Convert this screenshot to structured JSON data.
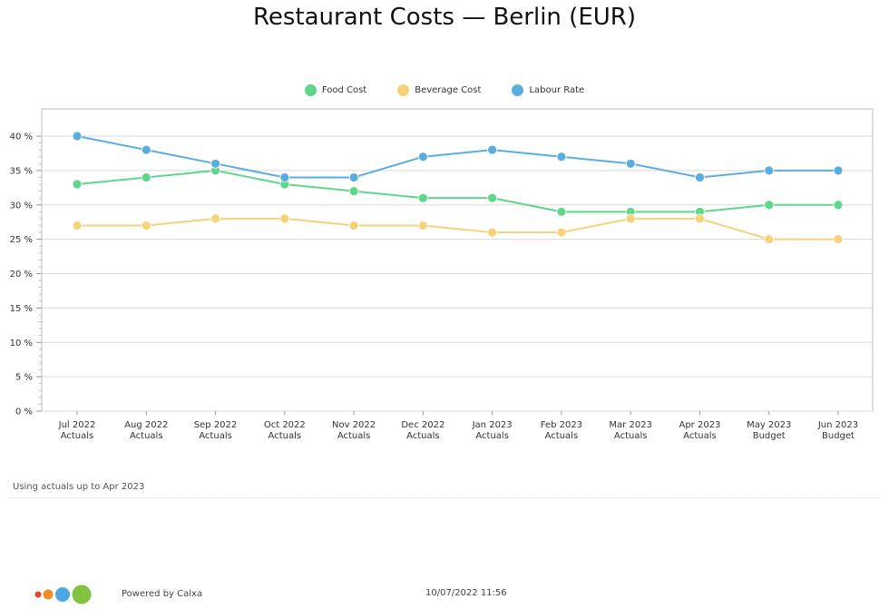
{
  "chart_data": {
    "type": "line",
    "title": "Restaurant Costs — Berlin (EUR)",
    "categories": [
      [
        "Jul 2022",
        "Actuals"
      ],
      [
        "Aug 2022",
        "Actuals"
      ],
      [
        "Sep 2022",
        "Actuals"
      ],
      [
        "Oct 2022",
        "Actuals"
      ],
      [
        "Nov 2022",
        "Actuals"
      ],
      [
        "Dec 2022",
        "Actuals"
      ],
      [
        "Jan 2023",
        "Actuals"
      ],
      [
        "Feb 2023",
        "Actuals"
      ],
      [
        "Mar 2023",
        "Actuals"
      ],
      [
        "Apr 2023",
        "Actuals"
      ],
      [
        "May 2023",
        "Budget"
      ],
      [
        "Jun 2023",
        "Budget"
      ]
    ],
    "series": [
      {
        "name": "Food Cost",
        "color": "#5ed78a",
        "values": [
          33,
          34,
          35,
          33,
          32,
          31,
          31,
          29,
          29,
          29,
          30,
          30
        ]
      },
      {
        "name": "Beverage Cost",
        "color": "#f6d27a",
        "values": [
          27,
          27,
          28,
          28,
          27,
          27,
          26,
          26,
          28,
          28,
          25,
          25
        ]
      },
      {
        "name": "Labour Rate",
        "color": "#5aaddf",
        "values": [
          40,
          38,
          36,
          34,
          34,
          37,
          38,
          37,
          36,
          34,
          35,
          35
        ]
      }
    ],
    "ylim": [
      0,
      40
    ],
    "yticks": [
      "0 %",
      "5 %",
      "10 %",
      "15 %",
      "20 %",
      "25 %",
      "30 %",
      "35 %",
      "40 %"
    ],
    "grid": true,
    "legend_position": "top-center"
  },
  "note": "Using actuals up to Apr 2023",
  "footer": {
    "powered_by": "Powered by Calxa",
    "timestamp": "10/07/2022 11:56",
    "logo_colors": [
      "#e8442e",
      "#f08c22",
      "#4ba8e0",
      "#82c341"
    ]
  }
}
